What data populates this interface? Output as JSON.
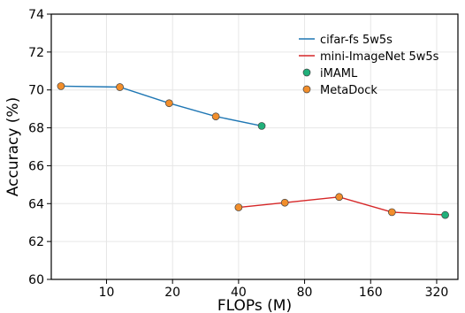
{
  "chart_data": {
    "type": "line",
    "xlabel": "FLOPs (M)",
    "ylabel": "Accuracy (%)",
    "x_scale": "log",
    "x_ticks": [
      10,
      20,
      40,
      80,
      160,
      320
    ],
    "x_tick_labels": [
      "10",
      "20",
      "40",
      "80",
      "160",
      "320"
    ],
    "xlim": [
      5.6,
      400
    ],
    "ylim": [
      60,
      74
    ],
    "y_ticks": [
      60,
      62,
      64,
      66,
      68,
      70,
      72,
      74
    ],
    "y_tick_labels": [
      "60",
      "62",
      "64",
      "66",
      "68",
      "70",
      "72",
      "74"
    ],
    "grid": true,
    "legend_position": "top-right",
    "series": [
      {
        "name": "cifar-fs 5w5s",
        "color": "#1f77b4",
        "x": [
          6.2,
          11.5,
          19.3,
          31.5,
          51
        ],
        "y": [
          70.2,
          70.15,
          69.3,
          68.6,
          68.1
        ],
        "markers": [
          "MetaDock",
          "MetaDock",
          "MetaDock",
          "MetaDock",
          "iMAML"
        ]
      },
      {
        "name": "mini-ImageNet 5w5s",
        "color": "#d62728",
        "x": [
          40,
          65,
          115,
          200,
          350
        ],
        "y": [
          63.8,
          64.05,
          64.35,
          63.55,
          63.4
        ],
        "markers": [
          "MetaDock",
          "MetaDock",
          "MetaDock",
          "MetaDock",
          "iMAML"
        ]
      }
    ],
    "marker_legend": [
      {
        "name": "iMAML",
        "key": "iMAML",
        "color": "#2ca02c"
      },
      {
        "name": "MetaDock",
        "key": "MetaDock",
        "color": "#ff7f0e"
      }
    ],
    "marker_colors": {
      "iMAML": "#20b07a",
      "MetaDock": "#f28e2b"
    }
  }
}
